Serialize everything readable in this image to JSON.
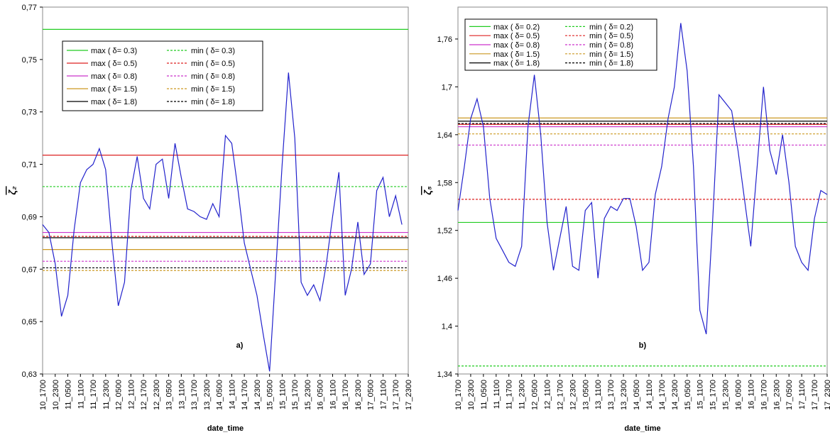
{
  "chart_data": [
    {
      "type": "line",
      "annotation": "a)",
      "xlabel": "date_time",
      "ylabel": "ζ₂",
      "ylim": [
        0.63,
        0.77
      ],
      "yticks": [
        {
          "value": 0.63,
          "label": "0,63"
        },
        {
          "value": 0.65,
          "label": "0,65"
        },
        {
          "value": 0.67,
          "label": "0,67"
        },
        {
          "value": 0.69,
          "label": "0,69"
        },
        {
          "value": 0.71,
          "label": "0,71"
        },
        {
          "value": 0.73,
          "label": "0,73"
        },
        {
          "value": 0.75,
          "label": "0,75"
        },
        {
          "value": 0.77,
          "label": "0,77"
        }
      ],
      "legend": "upper left",
      "categories": [
        "10_1700",
        null,
        "10_2300",
        null,
        "11_0500",
        null,
        "11_1100",
        null,
        "11_1700",
        null,
        "11_2300",
        null,
        "12_0500",
        null,
        "12_1100",
        null,
        "12_1700",
        null,
        "12_2300",
        null,
        "13_0500",
        null,
        "13_1100",
        null,
        "13_1700",
        null,
        "13_2300",
        null,
        "14_0500",
        null,
        "14_1100",
        null,
        "14_1700",
        null,
        "14_2300",
        null,
        "15_0500",
        null,
        "15_1100",
        null,
        "15_1700",
        null,
        "15_2300",
        null,
        "16_0500",
        null,
        "16_1100",
        null,
        "16_1700",
        null,
        "16_2300",
        null,
        "17_0500",
        null,
        "17_1100",
        null,
        "17_1700",
        null,
        "17_2300"
      ],
      "series": [
        {
          "color": "#2222cc",
          "values": [
            0.687,
            0.684,
            0.672,
            0.652,
            0.66,
            0.685,
            0.703,
            0.708,
            0.71,
            0.716,
            0.708,
            0.68,
            0.656,
            0.665,
            0.7,
            0.713,
            0.697,
            0.693,
            0.71,
            0.712,
            0.697,
            0.718,
            0.705,
            0.693,
            0.692,
            0.69,
            0.689,
            0.695,
            0.69,
            0.721,
            0.718,
            0.7,
            0.68,
            0.67,
            0.66,
            0.645,
            0.631,
            0.67,
            0.71,
            0.745,
            0.72,
            0.665,
            0.66,
            0.664,
            0.658,
            0.672,
            0.69,
            0.707,
            0.66,
            0.67,
            0.688,
            0.668,
            0.672,
            0.7,
            0.705,
            0.69,
            0.698,
            0.687,
            null
          ]
        }
      ],
      "reference_lines": [
        {
          "name": "max ( δ= 0.3)",
          "color": "#22cc22",
          "dashed": false,
          "value": 0.7615
        },
        {
          "name": "min ( δ= 0.3)",
          "color": "#22cc22",
          "dashed": true,
          "value": 0.7015
        },
        {
          "name": "max ( δ= 0.5)",
          "color": "#dd2222",
          "dashed": false,
          "value": 0.7135
        },
        {
          "name": "min ( δ= 0.5)",
          "color": "#dd2222",
          "dashed": true,
          "value": 0.6825
        },
        {
          "name": "max ( δ= 0.8)",
          "color": "#cc33cc",
          "dashed": false,
          "value": 0.684
        },
        {
          "name": "min ( δ= 0.8)",
          "color": "#cc33cc",
          "dashed": true,
          "value": 0.673
        },
        {
          "name": "max ( δ= 1.5)",
          "color": "#cc9922",
          "dashed": false,
          "value": 0.6775
        },
        {
          "name": "min ( δ= 1.5)",
          "color": "#cc9922",
          "dashed": true,
          "value": 0.6695
        },
        {
          "name": "max ( δ= 1.8)",
          "color": "#000000",
          "dashed": false,
          "value": 0.682
        },
        {
          "name": "min ( δ= 1.8)",
          "color": "#000000",
          "dashed": true,
          "value": 0.6705
        }
      ]
    },
    {
      "type": "line",
      "annotation": "b)",
      "xlabel": "date_time",
      "ylabel": "ζ₅",
      "ylim": [
        1.34,
        1.8
      ],
      "yticks": [
        {
          "value": 1.34,
          "label": "1,34"
        },
        {
          "value": 1.4,
          "label": "1,4"
        },
        {
          "value": 1.46,
          "label": "1,46"
        },
        {
          "value": 1.52,
          "label": "1,52"
        },
        {
          "value": 1.58,
          "label": "1,58"
        },
        {
          "value": 1.64,
          "label": "1,64"
        },
        {
          "value": 1.7,
          "label": "1,7"
        },
        {
          "value": 1.76,
          "label": "1,76"
        }
      ],
      "legend": "upper left",
      "categories": [
        "10_1700",
        null,
        "10_2300",
        null,
        "11_0500",
        null,
        "11_1100",
        null,
        "11_1700",
        null,
        "11_2300",
        null,
        "12_0500",
        null,
        "12_1100",
        null,
        "12_1700",
        null,
        "12_2300",
        null,
        "13_0500",
        null,
        "13_1100",
        null,
        "13_1700",
        null,
        "13_2300",
        null,
        "14_0500",
        null,
        "14_1100",
        null,
        "14_1700",
        null,
        "14_2300",
        null,
        "15_0500",
        null,
        "15_1100",
        null,
        "15_1700",
        null,
        "15_2300",
        null,
        "16_0500",
        null,
        "16_1100",
        null,
        "16_1700",
        null,
        "16_2300",
        null,
        "17_0500",
        null,
        "17_1100",
        null,
        "17_1700",
        null,
        "17_2300"
      ],
      "series": [
        {
          "color": "#2222cc",
          "values": [
            1.545,
            1.6,
            1.66,
            1.685,
            1.65,
            1.56,
            1.51,
            1.495,
            1.48,
            1.475,
            1.5,
            1.65,
            1.715,
            1.64,
            1.53,
            1.47,
            1.51,
            1.55,
            1.475,
            1.47,
            1.545,
            1.555,
            1.46,
            1.535,
            1.55,
            1.545,
            1.56,
            1.56,
            1.525,
            1.47,
            1.48,
            1.565,
            1.6,
            1.66,
            1.7,
            1.78,
            1.72,
            1.6,
            1.42,
            1.39,
            1.53,
            1.69,
            1.68,
            1.67,
            1.62,
            1.56,
            1.5,
            1.6,
            1.7,
            1.62,
            1.59,
            1.64,
            1.58,
            1.5,
            1.48,
            1.47,
            1.535,
            1.57,
            1.565
          ]
        }
      ],
      "reference_lines": [
        {
          "name": "max ( δ= 0.2)",
          "color": "#22cc22",
          "dashed": false,
          "value": 1.53
        },
        {
          "name": "min ( δ= 0.2)",
          "color": "#22cc22",
          "dashed": true,
          "value": 1.35
        },
        {
          "name": "max ( δ= 0.5)",
          "color": "#dd2222",
          "dashed": false,
          "value": 1.653
        },
        {
          "name": "min ( δ= 0.5)",
          "color": "#dd2222",
          "dashed": true,
          "value": 1.559
        },
        {
          "name": "max ( δ= 0.8)",
          "color": "#cc33cc",
          "dashed": false,
          "value": 1.65
        },
        {
          "name": "min ( δ= 0.8)",
          "color": "#cc33cc",
          "dashed": true,
          "value": 1.627
        },
        {
          "name": "max ( δ= 1.5)",
          "color": "#cc9922",
          "dashed": false,
          "value": 1.661
        },
        {
          "name": "min ( δ= 1.5)",
          "color": "#cc9922",
          "dashed": true,
          "value": 1.641
        },
        {
          "name": "max ( δ= 1.8)",
          "color": "#000000",
          "dashed": false,
          "value": 1.657
        },
        {
          "name": "min ( δ= 1.8)",
          "color": "#000000",
          "dashed": true,
          "value": 1.654
        }
      ]
    }
  ]
}
